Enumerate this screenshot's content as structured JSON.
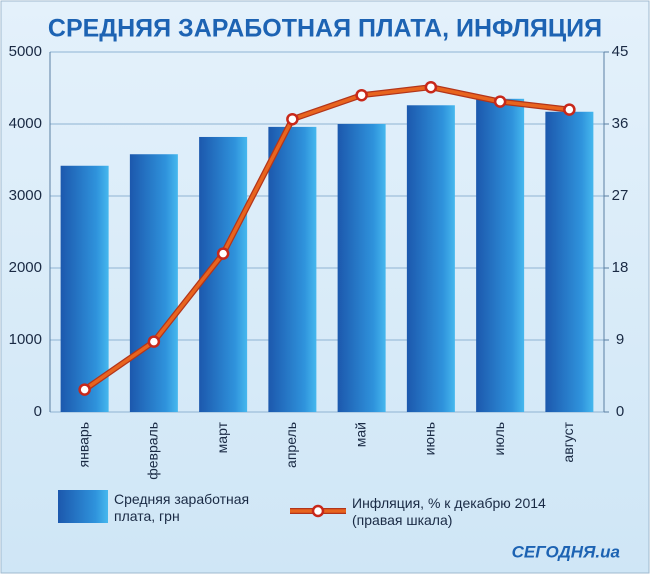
{
  "chart_data": {
    "type": "bar",
    "title": "СРЕДНЯЯ ЗАРАБОТНАЯ ПЛАТА, ИНФЛЯЦИЯ",
    "categories": [
      "январь",
      "февраль",
      "март",
      "апрель",
      "май",
      "июнь",
      "июль",
      "август"
    ],
    "series": [
      {
        "name": "Средняя заработная плата, грн",
        "color": "#1c58ad",
        "values": [
          3420,
          3580,
          3820,
          3960,
          4000,
          4260,
          4350,
          4170
        ]
      },
      {
        "name": "Инфляция, % к декабрю 2014 (правая шкала)",
        "color": "#e8641e",
        "type": "line",
        "axis": "y2",
        "values": [
          2.8,
          8.8,
          19.8,
          36.6,
          39.6,
          40.6,
          38.8,
          37.8
        ]
      }
    ],
    "ylim": [
      0,
      5000
    ],
    "yticks": [
      0,
      1000,
      2000,
      3000,
      4000,
      5000
    ],
    "y2lim": [
      0,
      45
    ],
    "y2ticks": [
      0,
      9,
      18,
      27,
      36,
      45
    ],
    "grid": true,
    "logo": "СЕГОДНЯ.ua"
  }
}
